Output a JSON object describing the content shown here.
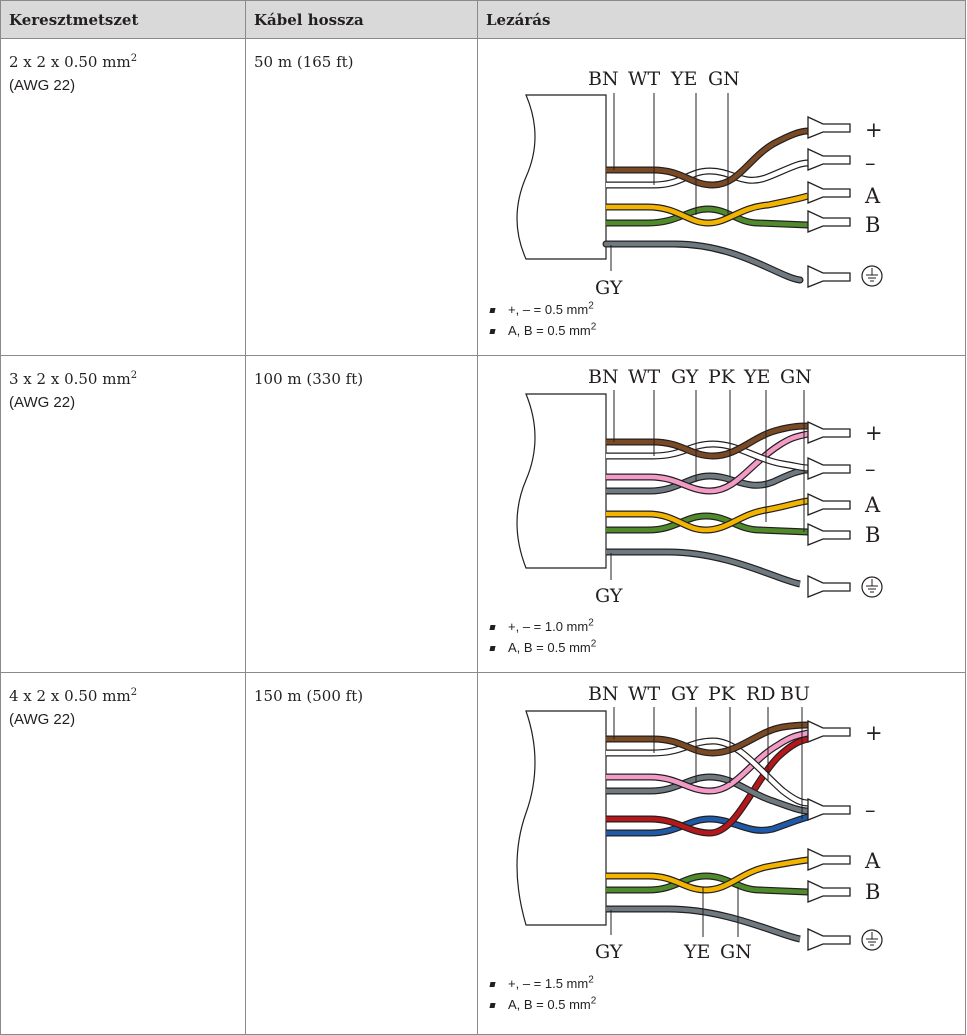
{
  "headers": [
    "Keresztmetszet",
    "Kábel hossza",
    "Lezárás"
  ],
  "rows": [
    {
      "cross_section": "2 x 2 x 0.50 mm",
      "sup": "2",
      "awg": "(AWG 22)",
      "length": "50 m (165 ft)",
      "wire_labels": [
        "BN",
        "WT",
        "YE",
        "GN"
      ],
      "bottom_label": "GY",
      "terminal_labels": [
        "+",
        "–",
        "A",
        "B"
      ],
      "notes": [
        {
          "text": "+, – = 0.5 mm",
          "sup": "2"
        },
        {
          "text": "A, B = 0.5 mm",
          "sup": "2"
        }
      ]
    },
    {
      "cross_section": "3 x 2 x 0.50 mm",
      "sup": "2",
      "awg": "(AWG 22)",
      "length": "100 m (330 ft)",
      "wire_labels": [
        "BN",
        "WT",
        "GY",
        "PK",
        "YE",
        "GN"
      ],
      "bottom_label": "GY",
      "terminal_labels": [
        "+",
        "–",
        "A",
        "B"
      ],
      "notes": [
        {
          "text": "+, – = 1.0 mm",
          "sup": "2"
        },
        {
          "text": "A, B = 0.5 mm",
          "sup": "2"
        }
      ]
    },
    {
      "cross_section": "4 x 2 x 0.50 mm",
      "sup": "2",
      "awg": "(AWG 22)",
      "length": "150 m (500 ft)",
      "wire_labels": [
        "BN",
        "WT",
        "GY",
        "PK",
        "RD",
        "BU"
      ],
      "bottom_labels": [
        "GY",
        "YE",
        "GN"
      ],
      "terminal_labels": [
        "+",
        "–",
        "A",
        "B"
      ],
      "notes": [
        {
          "text": "+, – = 1.5 mm",
          "sup": "2"
        },
        {
          "text": "A, B = 0.5 mm",
          "sup": "2"
        }
      ]
    }
  ],
  "colors": {
    "BN": "#7a4a25",
    "WT": "#ffffff",
    "YE": "#f2b400",
    "GN": "#4f8a2b",
    "GY": "#6f7980",
    "PK": "#f29bc6",
    "RD": "#b5171b",
    "BU": "#1e5aa8",
    "header_bg": "#d9d9d9",
    "border": "#8a8a8a"
  },
  "icons": {
    "ground": "ground-icon"
  }
}
